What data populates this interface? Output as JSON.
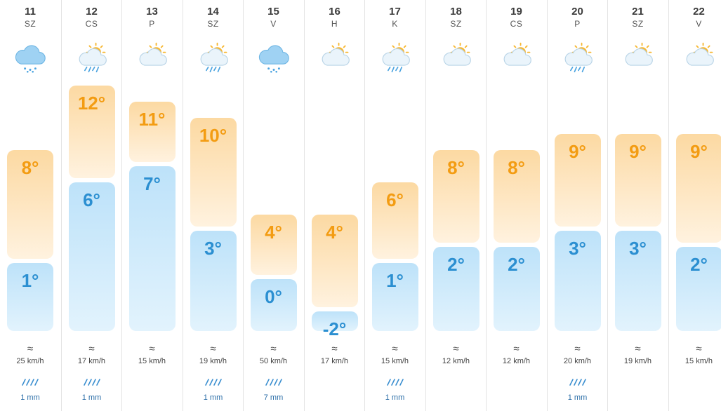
{
  "colors": {
    "max_bar": "#fcd9a2",
    "min_bar": "#bde2f9",
    "max_text": "#f39c12",
    "min_text": "#2b8fd1"
  },
  "days": [
    {
      "date": "11",
      "weekday": "SZ",
      "icon": "rain-cloud-icon",
      "max": "8°",
      "min": "1°",
      "max_c": 8,
      "min_c": 1,
      "wind": "25 km/h",
      "rain": "1 mm"
    },
    {
      "date": "12",
      "weekday": "CS",
      "icon": "sun-cloud-rain-icon",
      "max": "12°",
      "min": "6°",
      "max_c": 12,
      "min_c": 6,
      "wind": "17 km/h",
      "rain": "1 mm"
    },
    {
      "date": "13",
      "weekday": "P",
      "icon": "sun-cloud-icon",
      "max": "11°",
      "min": "7°",
      "max_c": 11,
      "min_c": 7,
      "wind": "15 km/h",
      "rain": ""
    },
    {
      "date": "14",
      "weekday": "SZ",
      "icon": "sun-cloud-rain-icon",
      "max": "10°",
      "min": "3°",
      "max_c": 10,
      "min_c": 3,
      "wind": "19 km/h",
      "rain": "1 mm"
    },
    {
      "date": "15",
      "weekday": "V",
      "icon": "rain-cloud-icon",
      "max": "4°",
      "min": "0°",
      "max_c": 4,
      "min_c": 0,
      "wind": "50 km/h",
      "rain": "7 mm"
    },
    {
      "date": "16",
      "weekday": "H",
      "icon": "sun-cloud-icon",
      "max": "4°",
      "min": "-2°",
      "max_c": 4,
      "min_c": -2,
      "wind": "17 km/h",
      "rain": ""
    },
    {
      "date": "17",
      "weekday": "K",
      "icon": "sun-cloud-rain-icon",
      "max": "6°",
      "min": "1°",
      "max_c": 6,
      "min_c": 1,
      "wind": "15 km/h",
      "rain": "1 mm"
    },
    {
      "date": "18",
      "weekday": "SZ",
      "icon": "sun-cloud-icon",
      "max": "8°",
      "min": "2°",
      "max_c": 8,
      "min_c": 2,
      "wind": "12 km/h",
      "rain": ""
    },
    {
      "date": "19",
      "weekday": "CS",
      "icon": "sun-cloud-icon",
      "max": "8°",
      "min": "2°",
      "max_c": 8,
      "min_c": 2,
      "wind": "12 km/h",
      "rain": ""
    },
    {
      "date": "20",
      "weekday": "P",
      "icon": "sun-cloud-rain-icon",
      "max": "9°",
      "min": "3°",
      "max_c": 9,
      "min_c": 3,
      "wind": "20 km/h",
      "rain": "1 mm"
    },
    {
      "date": "21",
      "weekday": "SZ",
      "icon": "sun-cloud-icon",
      "max": "9°",
      "min": "3°",
      "max_c": 9,
      "min_c": 3,
      "wind": "19 km/h",
      "rain": ""
    },
    {
      "date": "22",
      "weekday": "V",
      "icon": "sun-cloud-icon",
      "max": "9°",
      "min": "2°",
      "max_c": 9,
      "min_c": 2,
      "wind": "15 km/h",
      "rain": ""
    }
  ]
}
